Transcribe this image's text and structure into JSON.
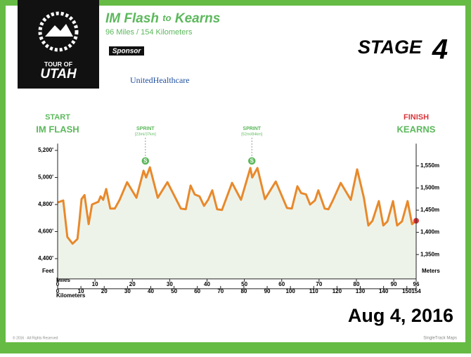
{
  "chart_data": {
    "type": "line",
    "title_from": "IM Flash",
    "title_sep": "to",
    "title_to": "Kearns",
    "subtitle": "96 Miles / 154 Kilometers",
    "sponsor_label": "Sponsor",
    "sponsor": "UnitedHealthcare",
    "logo_line1": "TOUR OF",
    "logo_line2": "UTAH",
    "stage_label": "STAGE",
    "stage_number": "4",
    "start_label": "START",
    "start_place": "IM FLASH",
    "finish_label": "FINISH",
    "finish_place": "KEARNS",
    "date": "Aug 4, 2016",
    "footer_left": "© 2016 · All Rights Reserved",
    "footer_right": "SingleTrack Maps",
    "y_label": "Feet",
    "y2_label": "Meters",
    "x_label": "Miles",
    "x2_label": "Kilometers",
    "color": "#e8892b",
    "fill": "#eef3ea",
    "x": [
      0,
      1.5,
      2.6,
      4,
      5.3,
      5.8,
      6.4,
      7.2,
      8.3,
      9.2,
      10.9,
      11.5,
      12.2,
      13,
      14.1,
      15.3,
      16.6,
      18.6,
      21.1,
      23,
      23.7,
      24.7,
      26.8,
      29.4,
      33,
      34.3,
      35.6,
      36.7,
      38,
      39.2,
      40.3,
      41.4,
      42.7,
      44,
      46.7,
      49.1,
      51.6,
      52.1,
      53.5,
      55.5,
      58.4,
      61.4,
      62.7,
      64.2,
      65.2,
      66.5,
      67.6,
      68.9,
      69.8,
      71.5,
      72.5,
      73.6,
      75.8,
      78.5,
      80.2,
      82,
      83.2,
      84.3,
      86,
      87.2,
      88.3,
      89.8,
      90.9,
      92.2,
      93.7,
      94.9,
      96
    ],
    "values": [
      4815,
      4830,
      4560,
      4510,
      4545,
      4670,
      4840,
      4870,
      4655,
      4800,
      4820,
      4860,
      4835,
      4915,
      4770,
      4770,
      4835,
      4965,
      4850,
      5050,
      5000,
      5075,
      4850,
      4965,
      4770,
      4765,
      4940,
      4875,
      4860,
      4790,
      4835,
      4905,
      4765,
      4760,
      4960,
      4835,
      5070,
      5000,
      5070,
      4840,
      4970,
      4775,
      4770,
      4935,
      4885,
      4875,
      4800,
      4830,
      4905,
      4770,
      4765,
      4825,
      4960,
      4835,
      5060,
      4850,
      4645,
      4680,
      4825,
      4645,
      4675,
      4825,
      4645,
      4675,
      4825,
      4655,
      4680
    ],
    "xlim": [
      0,
      96
    ],
    "xticks": [
      0,
      10,
      20,
      30,
      40,
      50,
      60,
      70,
      80,
      90,
      96
    ],
    "x2lim": [
      0,
      154
    ],
    "x2ticks": [
      0,
      10,
      20,
      30,
      40,
      50,
      60,
      70,
      80,
      90,
      100,
      110,
      120,
      130,
      140,
      150,
      154
    ],
    "ylim": [
      4250,
      5250
    ],
    "yticks": [
      {
        "value": 4400,
        "label": "4,400'"
      },
      {
        "value": 4600,
        "label": "4,600'"
      },
      {
        "value": 4800,
        "label": "4,800'"
      },
      {
        "value": 5000,
        "label": "5,000'"
      },
      {
        "value": 5200,
        "label": "5,200'"
      }
    ],
    "y2lim": [
      1295,
      1600
    ],
    "y2ticks": [
      {
        "value": 1350,
        "label": "1,350m"
      },
      {
        "value": 1400,
        "label": "1,400m"
      },
      {
        "value": 1450,
        "label": "1,450m"
      },
      {
        "value": 1500,
        "label": "1,500m"
      },
      {
        "value": 1550,
        "label": "1,550m"
      }
    ],
    "annotations": [
      {
        "label": "SPRINT",
        "detail": "[23mi/37km]",
        "marker": "S",
        "x": 23.5
      },
      {
        "label": "SPRINT",
        "detail": "[52mi/84km]",
        "marker": "S",
        "x": 52
      }
    ]
  }
}
